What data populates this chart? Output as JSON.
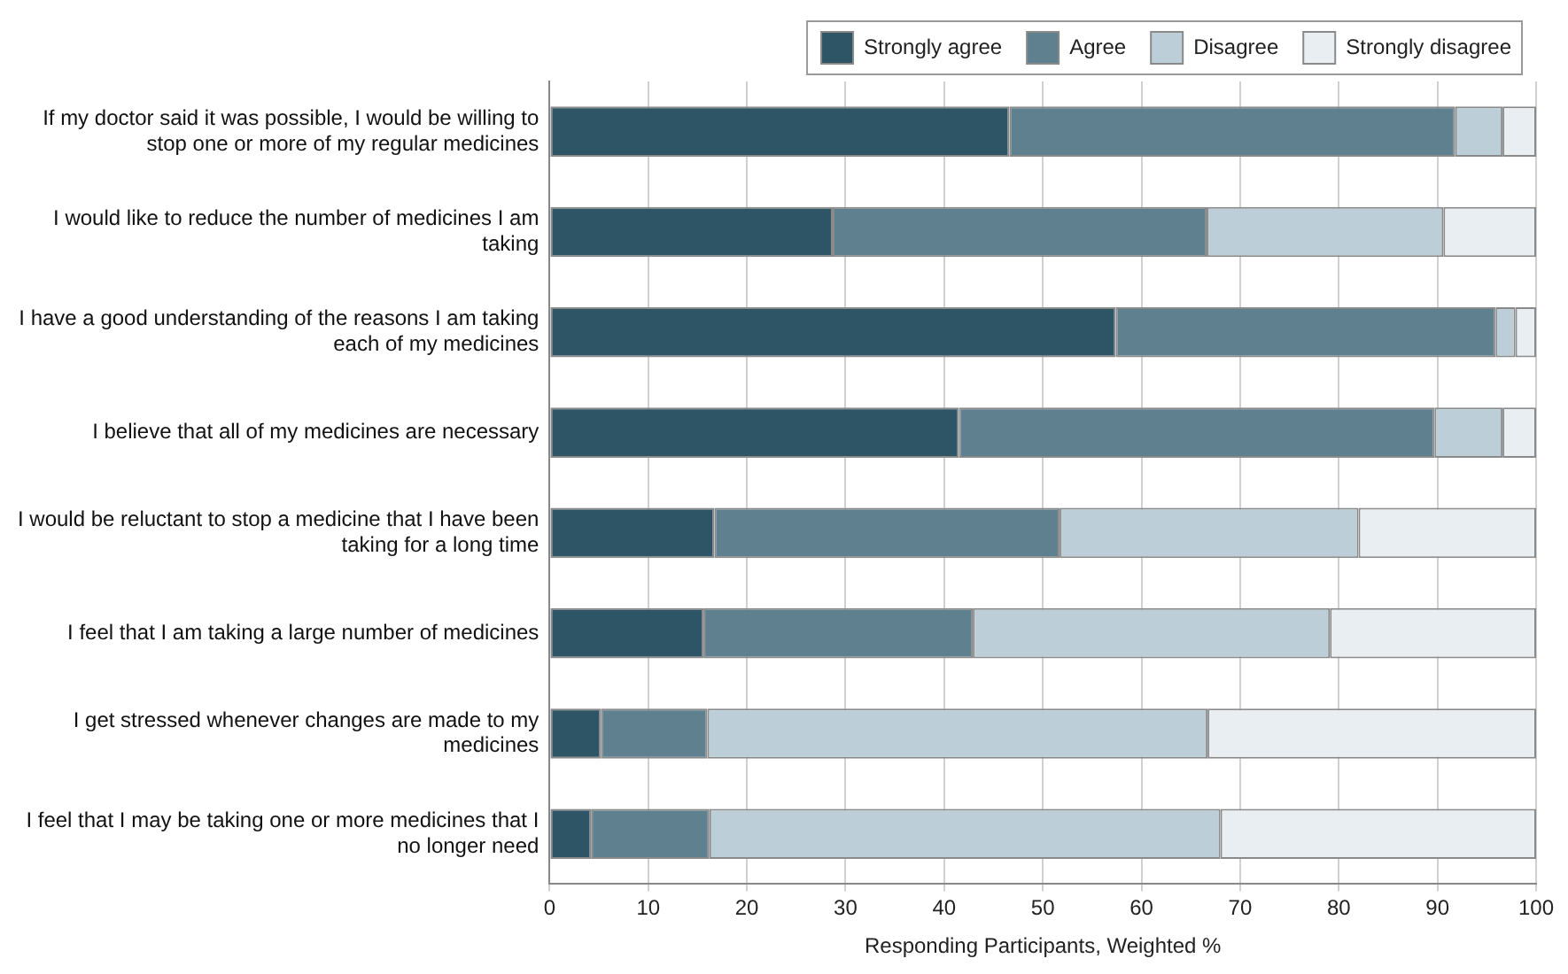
{
  "chart_data": {
    "type": "bar",
    "orientation": "horizontal",
    "stacked": true,
    "categories": [
      "If my doctor said it was possible, I would be willing to stop one or more of my regular medicines",
      "I would like to reduce the number of medicines I am taking",
      "I have a good understanding of the reasons I am taking each of my medicines",
      "I believe that all of my medicines are necessary",
      "I would be reluctant to stop a medicine that I have been taking for a long time",
      "I feel that I am taking a large number of medicines",
      "I get stressed whenever changes are made to my medicines",
      "I feel that I may be taking one or more medicines that I no longer need"
    ],
    "series": [
      {
        "name": "Strongly agree",
        "color": "#2e5565",
        "values": [
          46.6,
          28.7,
          57.4,
          41.5,
          16.7,
          15.6,
          5.2,
          4.2
        ]
      },
      {
        "name": "Agree",
        "color": "#5f808f",
        "values": [
          45.2,
          37.9,
          38.5,
          48.2,
          35,
          27.3,
          10.8,
          12
        ]
      },
      {
        "name": "Disagree",
        "color": "#bccfd9",
        "values": [
          4.8,
          24,
          2,
          6.9,
          30.3,
          36.2,
          50.7,
          51.8
        ]
      },
      {
        "name": "Strongly disagree",
        "color": "#e8eef2",
        "values": [
          3.4,
          9.4,
          2.1,
          3.4,
          18,
          20.9,
          33.3,
          32
        ]
      }
    ],
    "xlabel": "Responding Participants, Weighted %",
    "xlim": [
      0,
      100
    ],
    "xticks": [
      0,
      10,
      20,
      30,
      40,
      50,
      60,
      70,
      80,
      90,
      100
    ],
    "grid": "x",
    "legend": "top right"
  }
}
